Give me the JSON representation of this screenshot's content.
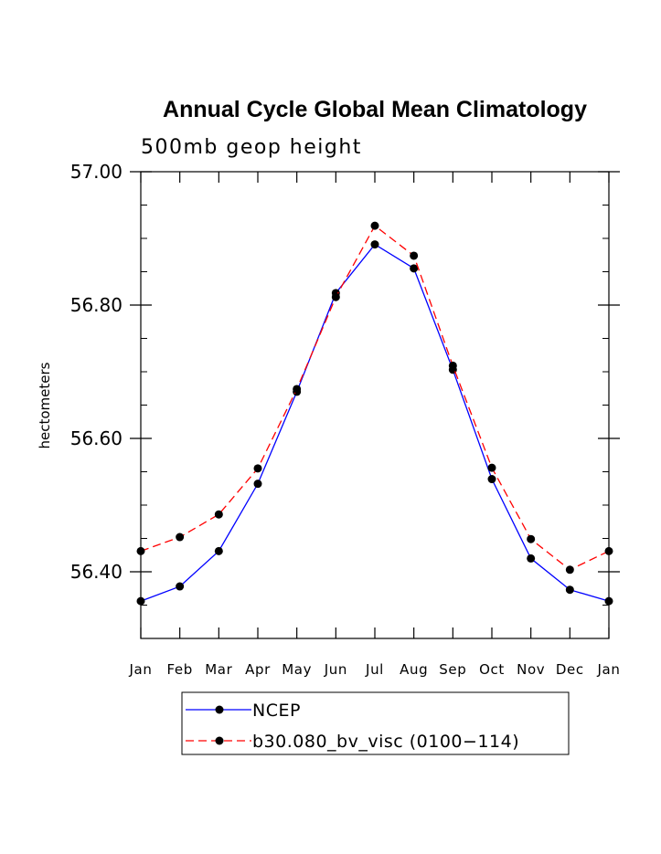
{
  "chart_data": {
    "type": "line",
    "title": "Annual Cycle Global Mean Climatology",
    "subtitle": "500mb geop height",
    "ylabel": "hectometers",
    "xlabel": "",
    "categories": [
      "Jan",
      "Feb",
      "Mar",
      "Apr",
      "May",
      "Jun",
      "Jul",
      "Aug",
      "Sep",
      "Oct",
      "Nov",
      "Dec",
      "Jan"
    ],
    "ylim": [
      56.3,
      57.0
    ],
    "yticks": [
      56.4,
      56.6,
      56.8,
      57.0
    ],
    "ytick_labels": [
      "56.40",
      "56.60",
      "56.80",
      "57.00"
    ],
    "series": [
      {
        "name": "NCEP",
        "color": "#0000ff",
        "dash": "solid",
        "marker": "circle",
        "values": [
          56.356,
          56.378,
          56.431,
          56.532,
          56.67,
          56.818,
          56.891,
          56.855,
          56.703,
          56.539,
          56.42,
          56.373,
          56.356
        ]
      },
      {
        "name": "b30.080_bv_visc (0100−114)",
        "color": "#ff0000",
        "dash": "dashed",
        "marker": "circle",
        "values": [
          56.431,
          56.452,
          56.486,
          56.555,
          56.674,
          56.812,
          56.919,
          56.874,
          56.709,
          56.556,
          56.449,
          56.403,
          56.431
        ]
      }
    ],
    "grid": false,
    "legend_position": "bottom"
  }
}
